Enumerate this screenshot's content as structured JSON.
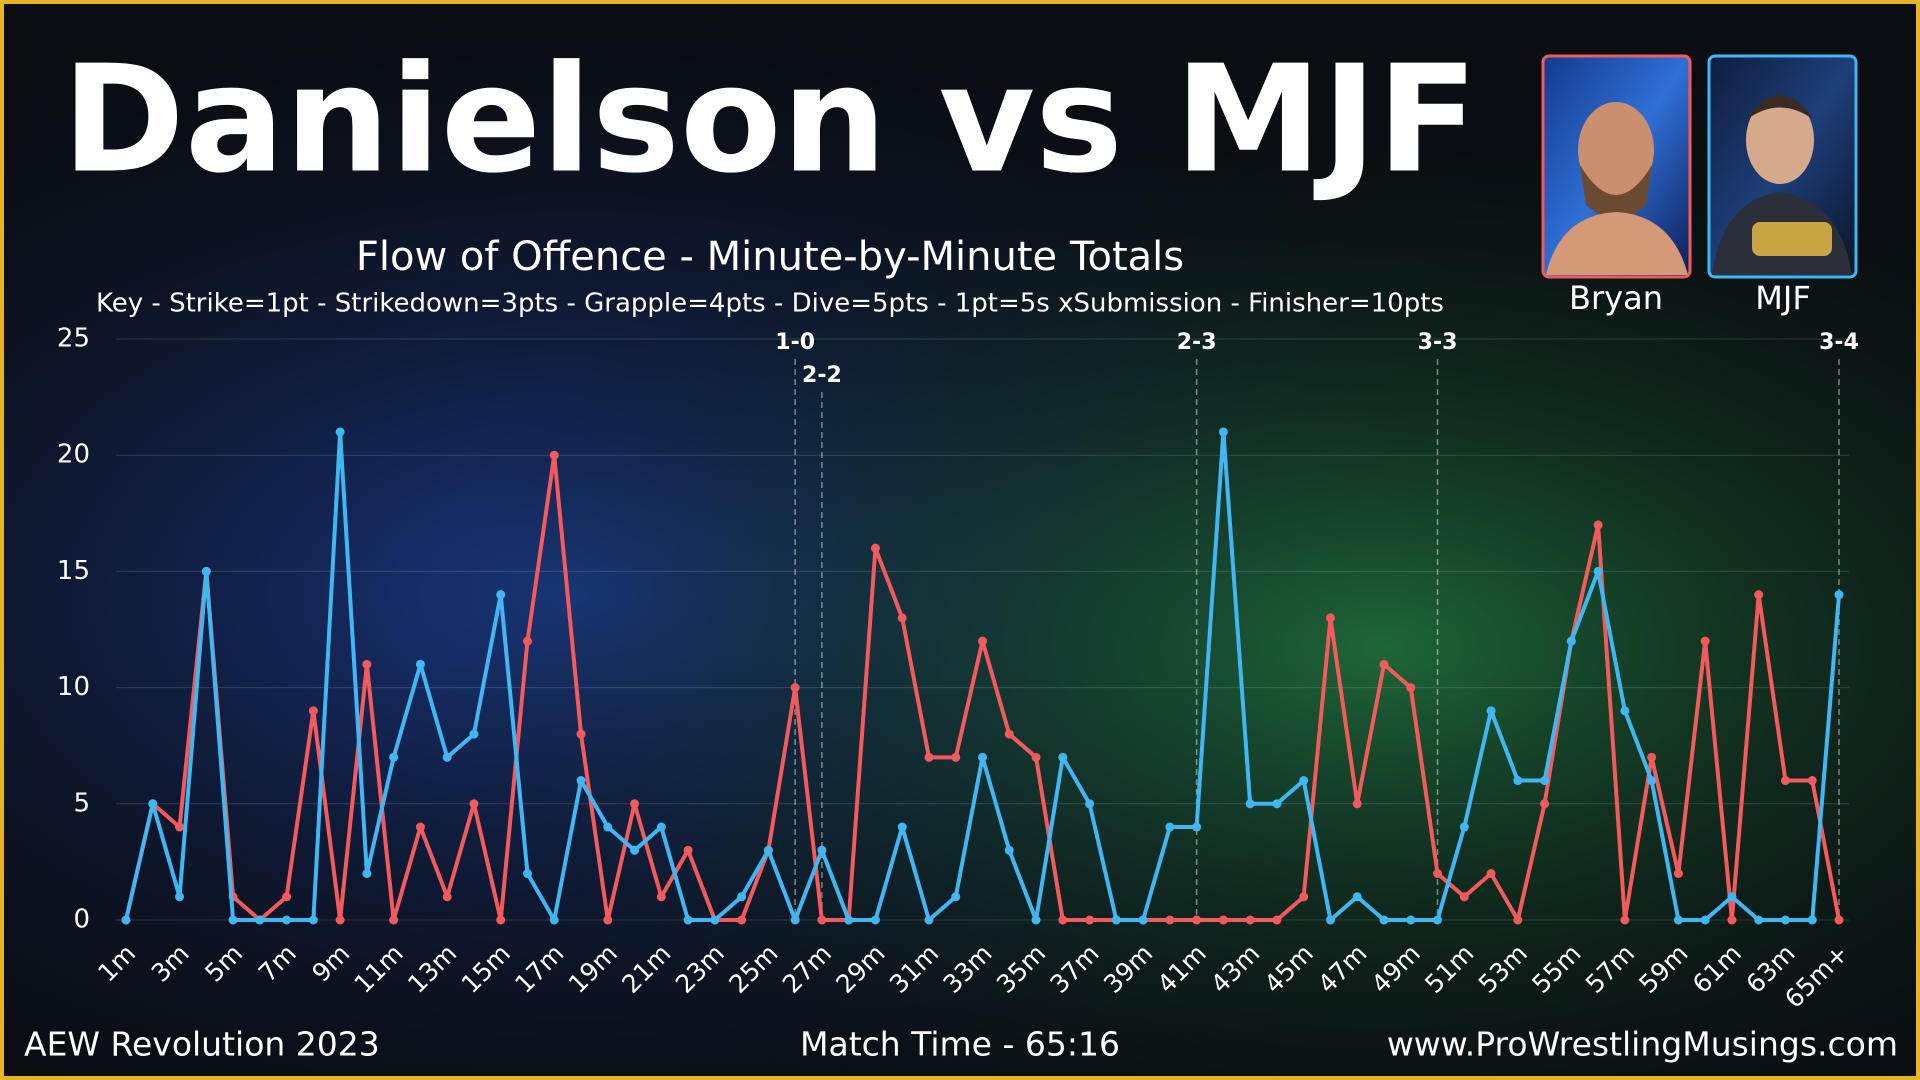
{
  "chart_data": {
    "type": "line",
    "title": "Danielson vs MJF",
    "subtitle": "Flow of Offence - Minute-by-Minute Totals",
    "key": "Key - Strike=1pt - Strikedown=3pts - Grapple=4pts - Dive=5pts - 1pt=5s xSubmission - Finisher=10pts",
    "categories": [
      "1m",
      null,
      "3m",
      null,
      "5m",
      null,
      "7m",
      null,
      "9m",
      null,
      "11m",
      null,
      "13m",
      null,
      "15m",
      null,
      "17m",
      null,
      "19m",
      null,
      "21m",
      null,
      "23m",
      null,
      "25m",
      null,
      "27m",
      null,
      "29m",
      null,
      "31m",
      null,
      "33m",
      null,
      "35m",
      null,
      "37m",
      null,
      "39m",
      null,
      "41m",
      null,
      "43m",
      null,
      "45m",
      null,
      "47m",
      null,
      "49m",
      null,
      "51m",
      null,
      "53m",
      null,
      "55m",
      null,
      "57m",
      null,
      "59m",
      null,
      "61m",
      null,
      "63m",
      null,
      "65m+"
    ],
    "series": [
      {
        "name": "Bryan",
        "color": "#f25a5c",
        "values": [
          0,
          5,
          4,
          15,
          1,
          0,
          1,
          9,
          0,
          11,
          0,
          4,
          1,
          5,
          0,
          12,
          20,
          8,
          0,
          5,
          1,
          3,
          0,
          0,
          3,
          10,
          0,
          0,
          16,
          13,
          7,
          7,
          12,
          8,
          7,
          0,
          0,
          0,
          0,
          0,
          0,
          0,
          0,
          0,
          1,
          13,
          5,
          11,
          10,
          2,
          1,
          2,
          0,
          5,
          12,
          17,
          0,
          7,
          2,
          12,
          0,
          14,
          6,
          6,
          0
        ]
      },
      {
        "name": "MJF",
        "color": "#40b6f2",
        "values": [
          0,
          5,
          1,
          15,
          0,
          0,
          0,
          0,
          21,
          2,
          7,
          11,
          7,
          8,
          14,
          2,
          0,
          6,
          4,
          3,
          4,
          0,
          0,
          1,
          3,
          0,
          3,
          0,
          0,
          4,
          0,
          1,
          7,
          3,
          0,
          7,
          5,
          0,
          0,
          4,
          4,
          21,
          5,
          5,
          6,
          0,
          1,
          0,
          0,
          0,
          4,
          9,
          6,
          6,
          12,
          15,
          9,
          6,
          0,
          0,
          1,
          0,
          0,
          0,
          14
        ]
      }
    ],
    "ylim": [
      0,
      25
    ],
    "yticks": [
      0,
      5,
      10,
      15,
      20,
      25
    ],
    "grid": true,
    "annotations": [
      {
        "label": "1-0",
        "x": 26
      },
      {
        "label": "2-2",
        "x": 27
      },
      {
        "label": "2-3",
        "x": 41
      },
      {
        "label": "3-3",
        "x": 50
      },
      {
        "label": "3-4",
        "x": 65
      }
    ],
    "footer_left": "AEW Revolution 2023",
    "footer_center": "Match Time - 65:16",
    "footer_right": "www.ProWrestlingMusings.com"
  }
}
